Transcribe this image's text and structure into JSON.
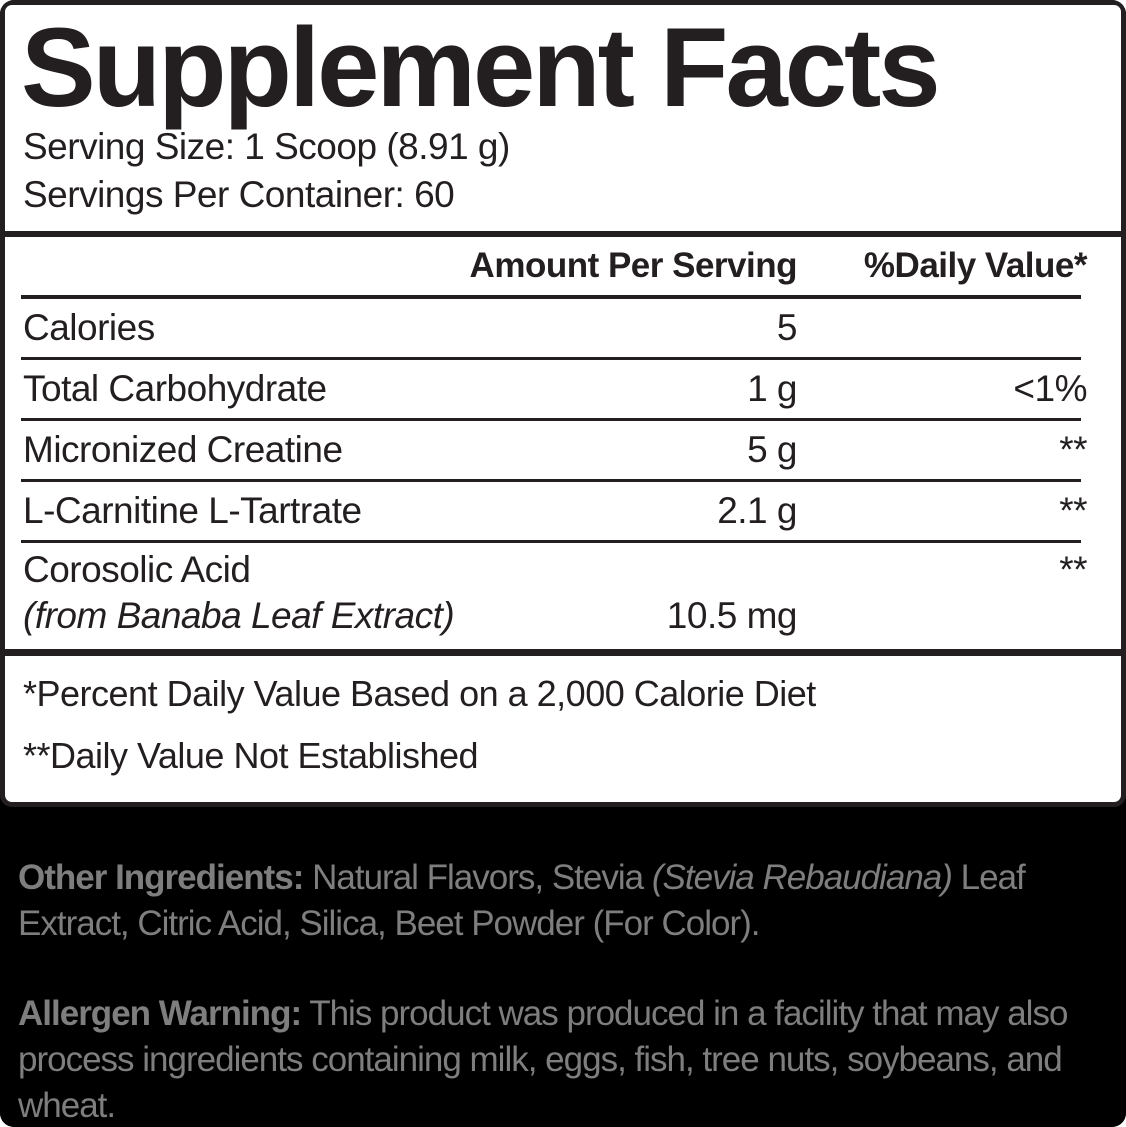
{
  "header": {
    "title": "Supplement Facts"
  },
  "serving": {
    "size": "Serving Size: 1 Scoop (8.91 g)",
    "per_container": "Servings Per Container: 60"
  },
  "table": {
    "col_amount": "Amount Per Serving",
    "col_dv": "%Daily Value*",
    "rows": [
      {
        "name": "Calories",
        "amount": "5",
        "dv": ""
      },
      {
        "name": "Total Carbohydrate",
        "amount": "1 g",
        "dv": "<1%"
      },
      {
        "name": "Micronized Creatine",
        "amount": "5 g",
        "dv": "**"
      },
      {
        "name": "L-Carnitine L-Tartrate",
        "amount": "2.1 g",
        "dv": "**"
      },
      {
        "name": "Corosolic Acid",
        "sub": "(from Banaba Leaf Extract)",
        "amount": "10.5 mg",
        "dv": "**"
      }
    ],
    "footnotes": [
      "*Percent Daily Value Based on a 2,000 Calorie Diet",
      "**Daily Value Not Established"
    ]
  },
  "other_ingredients": {
    "label": "Other Ingredients:",
    "text_before_italic": " Natural Flavors, Stevia ",
    "italic": "(Stevia Rebaudiana)",
    "text_after_italic": " Leaf Extract, Citric Acid, Silica, Beet Powder (For Color)."
  },
  "allergen": {
    "label": "Allergen Warning:",
    "text": " This product was produced in a facility that may also process ingredients containing milk, eggs, fish, tree nuts, soybeans, and wheat."
  },
  "colors": {
    "ink": "#231f20",
    "panel_bg": "#ffffff",
    "bottom_bg": "#000000",
    "bottom_text": "#7e7e7e"
  }
}
